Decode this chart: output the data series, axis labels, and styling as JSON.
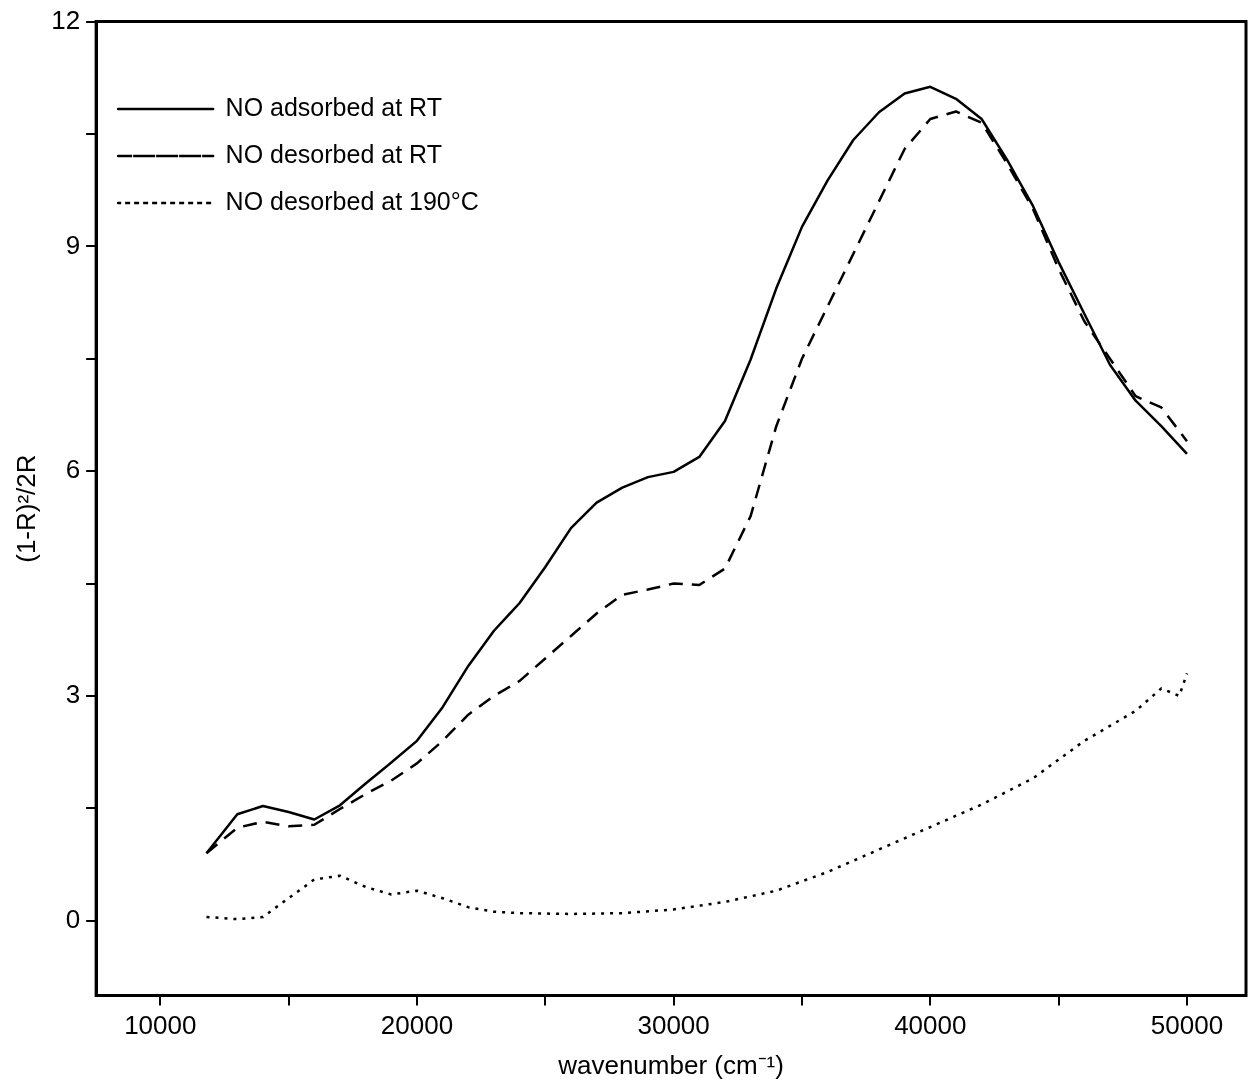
{
  "chart_data": {
    "type": "line",
    "xlabel": "wavenumber (cm⁻¹)",
    "ylabel": "(1-R)²/2R",
    "xlim": [
      7500,
      52300
    ],
    "xticks": [
      10000,
      {
        "value": 15000,
        "label": null
      },
      20000,
      {
        "value": 25000,
        "label": null
      },
      30000,
      {
        "value": 35000,
        "label": null
      },
      40000,
      {
        "value": 45000,
        "label": null
      },
      50000
    ],
    "ylim": [
      -1,
      12
    ],
    "yticks": [
      0,
      {
        "value": 1.5,
        "label": null
      },
      3,
      {
        "value": 4.5,
        "label": null
      },
      6,
      {
        "value": 7.5,
        "label": null
      },
      9,
      {
        "value": 10.5,
        "label": null
      },
      12
    ],
    "grid": false,
    "legend": "top left",
    "marker": "none",
    "series": [
      {
        "name": "NO adsorbed at RT",
        "color": "#000000",
        "line_style": "solid",
        "x": [
          11800,
          13000,
          14000,
          15000,
          16000,
          17000,
          18000,
          19000,
          20000,
          21000,
          22000,
          23000,
          24000,
          25000,
          26000,
          27000,
          28000,
          29000,
          30000,
          31000,
          32000,
          33000,
          34000,
          35000,
          36000,
          37000,
          38000,
          39000,
          40000,
          41000,
          42000,
          43000,
          44000,
          45000,
          46000,
          47000,
          48000,
          49000,
          50000
        ],
        "values": [
          0.9,
          1.42,
          1.53,
          1.45,
          1.35,
          1.54,
          1.83,
          2.11,
          2.4,
          2.85,
          3.4,
          3.87,
          4.24,
          4.72,
          5.24,
          5.58,
          5.78,
          5.92,
          5.99,
          6.19,
          6.67,
          7.49,
          8.44,
          9.26,
          9.88,
          10.42,
          10.79,
          11.04,
          11.13,
          10.97,
          10.7,
          10.15,
          9.54,
          8.79,
          8.1,
          7.42,
          6.94,
          6.6,
          6.23
        ]
      },
      {
        "name": "NO desorbed at RT",
        "color": "#000000",
        "line_style": "dashed",
        "x": [
          11800,
          13000,
          14000,
          15000,
          16000,
          17000,
          18000,
          19000,
          20000,
          21000,
          22000,
          23000,
          24000,
          25000,
          26000,
          27000,
          28000,
          29000,
          30000,
          31000,
          32000,
          33000,
          34000,
          35000,
          36000,
          37000,
          38000,
          39000,
          40000,
          41000,
          42000,
          43000,
          44000,
          45000,
          46000,
          47000,
          48000,
          49000,
          50000
        ],
        "values": [
          0.9,
          1.24,
          1.32,
          1.26,
          1.28,
          1.49,
          1.69,
          1.87,
          2.1,
          2.4,
          2.75,
          3.0,
          3.2,
          3.5,
          3.8,
          4.1,
          4.35,
          4.42,
          4.5,
          4.48,
          4.7,
          5.4,
          6.6,
          7.5,
          8.2,
          8.9,
          9.6,
          10.3,
          10.7,
          10.8,
          10.65,
          10.1,
          9.5,
          8.7,
          8.0,
          7.5,
          7.0,
          6.85,
          6.4
        ]
      },
      {
        "name": "NO desorbed at 190°C",
        "color": "#000000",
        "line_style": "dotted",
        "x": [
          11800,
          13000,
          14000,
          15000,
          16000,
          17000,
          18000,
          19000,
          20000,
          21000,
          22000,
          23000,
          24000,
          26000,
          28000,
          30000,
          32000,
          34000,
          36000,
          38000,
          40000,
          42000,
          44000,
          46000,
          47000,
          48000,
          49000,
          49700,
          50000
        ],
        "values": [
          0.05,
          0.02,
          0.05,
          0.3,
          0.55,
          0.6,
          0.45,
          0.35,
          0.4,
          0.3,
          0.18,
          0.12,
          0.1,
          0.09,
          0.1,
          0.15,
          0.25,
          0.4,
          0.65,
          0.95,
          1.25,
          1.55,
          1.9,
          2.4,
          2.6,
          2.8,
          3.1,
          3.0,
          3.3
        ]
      }
    ]
  }
}
